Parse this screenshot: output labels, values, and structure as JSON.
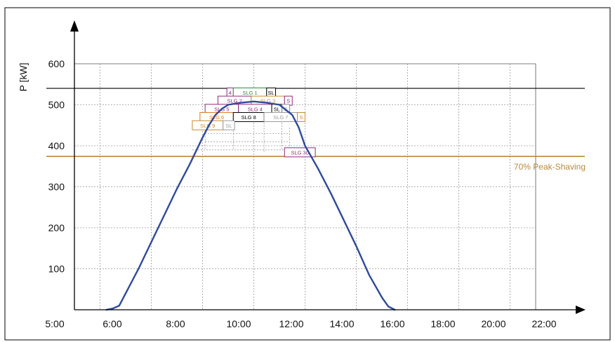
{
  "chart_data": {
    "type": "line",
    "ylabel": "P [kW]",
    "xlabel": "",
    "xlim": [
      5,
      23
    ],
    "ylim": [
      0,
      600
    ],
    "x_ticks": [
      "5:00",
      "6:00",
      "8:00",
      "10:00",
      "12:00",
      "14:00",
      "16:00",
      "18:00",
      "20:00",
      "22:00"
    ],
    "y_ticks": [
      "100",
      "200",
      "300",
      "400",
      "500",
      "600"
    ],
    "grid": true,
    "series": [
      {
        "name": "",
        "color": "#2f4a9a",
        "x": [
          6.25,
          6.5,
          6.75,
          7.0,
          7.5,
          8.0,
          8.5,
          9.0,
          9.5,
          10.0,
          10.25,
          10.5,
          10.75,
          11.0,
          11.5,
          12.0,
          12.5,
          13.0,
          13.5,
          13.75,
          14.0,
          14.5,
          15.0,
          15.5,
          16.0,
          16.5,
          17.0,
          17.25,
          17.5
        ],
        "y": [
          0,
          3,
          10,
          40,
          100,
          165,
          230,
          295,
          355,
          420,
          450,
          475,
          490,
          500,
          505,
          508,
          505,
          500,
          475,
          445,
          400,
          345,
          285,
          220,
          155,
          85,
          30,
          8,
          0
        ]
      }
    ],
    "reference_lines": [
      {
        "y": 540,
        "color": "#000000",
        "label": ""
      },
      {
        "y": 374,
        "color": "#b8893e",
        "label": "70% Peak-Shaving"
      }
    ],
    "blocks": [
      {
        "label": "4",
        "color": "#8e2a7a",
        "x0": 10.95,
        "x1": 11.2,
        "y": 530
      },
      {
        "label": "SLG 1",
        "color": "#2e8b3a",
        "x0": 11.2,
        "x1": 12.5,
        "y": 530
      },
      {
        "label": "SL",
        "color": "#000000",
        "x0": 12.5,
        "x1": 12.85,
        "y": 530
      },
      {
        "label": "SLG 2",
        "color": "#8e2a7a",
        "x0": 10.6,
        "x1": 11.9,
        "y": 510
      },
      {
        "label": "SLG 3",
        "color": "#c98a2e",
        "x0": 11.9,
        "x1": 13.2,
        "y": 510
      },
      {
        "label": "S",
        "color": "#8e2a7a",
        "x0": 13.2,
        "x1": 13.5,
        "y": 510
      },
      {
        "label": "SLG 5",
        "color": "#8e2a7a",
        "x0": 10.1,
        "x1": 11.4,
        "y": 490
      },
      {
        "label": "SLG 4",
        "color": "#8e2a7a",
        "x0": 11.4,
        "x1": 12.7,
        "y": 490
      },
      {
        "label": "SL",
        "color": "#000000",
        "x0": 12.7,
        "x1": 13.1,
        "y": 490
      },
      {
        "label": "S",
        "color": "#888888",
        "x0": 13.1,
        "x1": 13.4,
        "y": 490
      },
      {
        "label": "SLG 6",
        "color": "#e07a20",
        "x0": 9.9,
        "x1": 11.2,
        "y": 470
      },
      {
        "label": "SLG 8",
        "color": "#000000",
        "x0": 11.2,
        "x1": 12.4,
        "y": 470
      },
      {
        "label": "SLG 7",
        "color": "#999999",
        "x0": 12.4,
        "x1": 13.7,
        "y": 470
      },
      {
        "label": "S",
        "color": "#c98a2e",
        "x0": 13.7,
        "x1": 14.0,
        "y": 470
      },
      {
        "label": "SLG 9",
        "color": "#c98a2e",
        "x0": 9.6,
        "x1": 10.8,
        "y": 450
      },
      {
        "label": "SL",
        "color": "#999999",
        "x0": 10.8,
        "x1": 11.25,
        "y": 450
      },
      {
        "label": "SLG 30",
        "color": "#8e2a7a",
        "x0": 13.2,
        "x1": 14.4,
        "y": 384
      }
    ]
  }
}
